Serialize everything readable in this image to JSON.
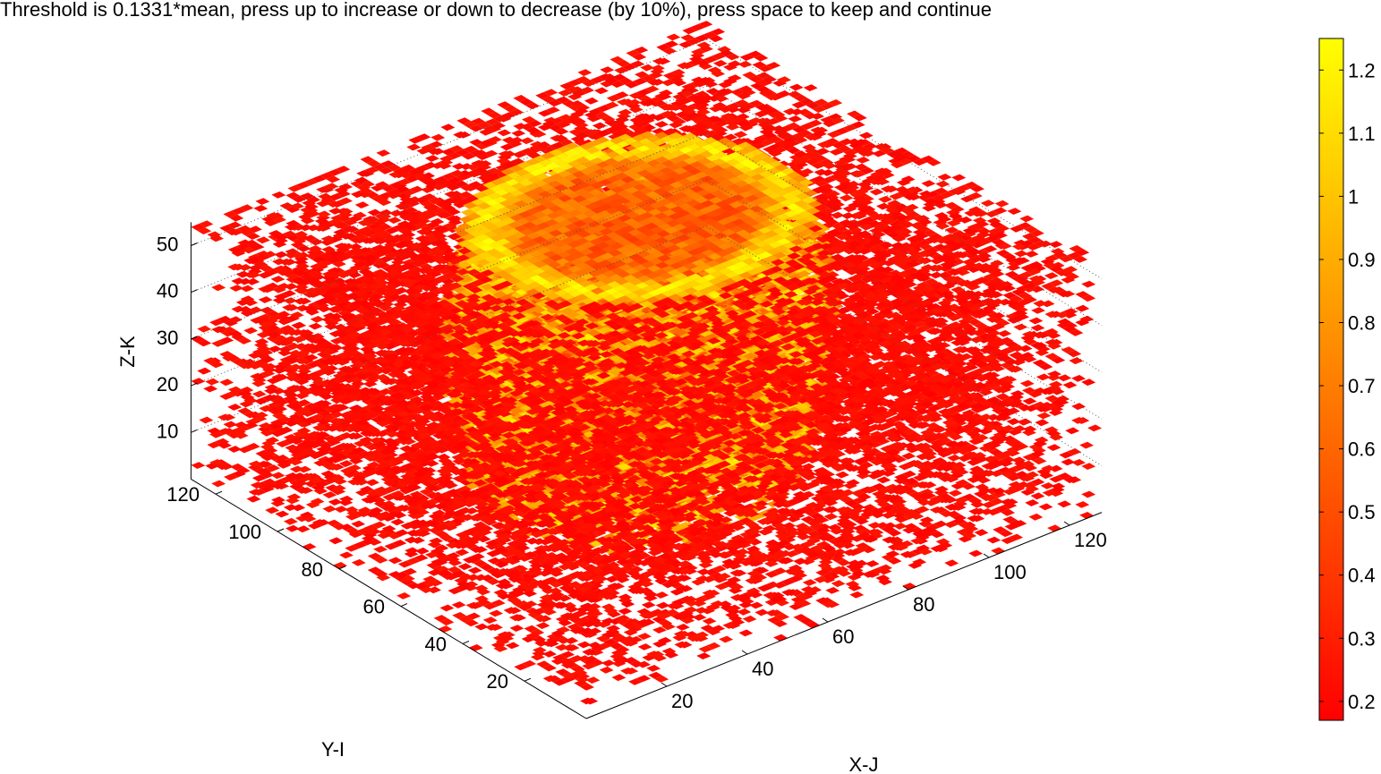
{
  "title": "Threshold is 0.1331*mean, press up to increase or down to decrease (by 10%), press space to keep and continue",
  "chart_data": {
    "type": "heatmap",
    "subtype": "3d-voxel-slices",
    "title": "Threshold is 0.1331*mean, press up to increase or down to decrease (by 10%), press space to keep and continue",
    "xlabel": "X-J",
    "ylabel": "Y-I",
    "zlabel": "Z-K",
    "x_ticks": [
      20,
      40,
      60,
      80,
      100,
      120
    ],
    "y_ticks": [
      20,
      40,
      60,
      80,
      100,
      120
    ],
    "z_ticks": [
      10,
      20,
      30,
      40,
      50
    ],
    "xlim": [
      0,
      128
    ],
    "ylim": [
      0,
      128
    ],
    "zlim": [
      0,
      55
    ],
    "colorbar": {
      "colormap": "autumn",
      "colors": [
        "#ff0000",
        "#ffff00"
      ],
      "ticks": [
        0.2,
        0.3,
        0.4,
        0.5,
        0.6,
        0.7,
        0.8,
        0.9,
        1,
        1.1,
        1.2
      ],
      "tick_labels": [
        "0.2",
        "0.3",
        "0.4",
        "0.5",
        "0.6",
        "0.7",
        "0.8",
        "0.9",
        "1",
        "1.1",
        "1.2"
      ],
      "range": [
        0.17,
        1.25
      ]
    },
    "threshold": "0.1331*mean",
    "grid": true,
    "view": "3d-isometric"
  }
}
